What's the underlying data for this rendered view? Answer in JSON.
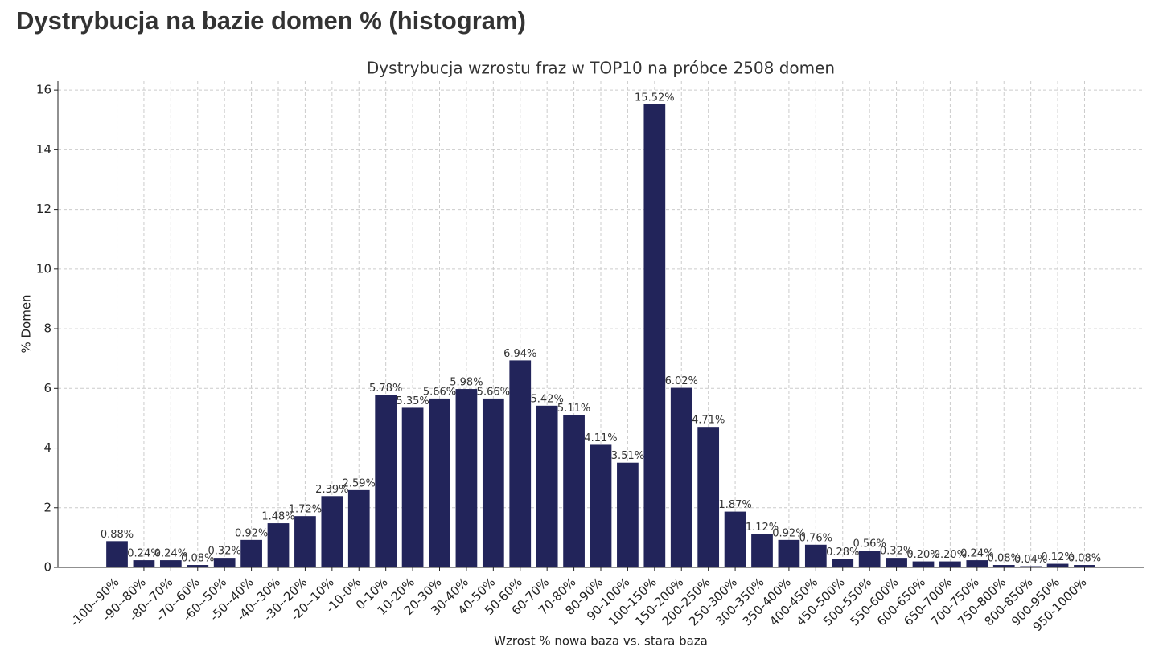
{
  "header": {
    "title": "Dystrybucja na bazie domen % (histogram)"
  },
  "chart_data": {
    "type": "bar",
    "title": "Dystrybucja wzrostu fraz w TOP10 na próbce 2508 domen",
    "x_label": "Wzrost % nowa baza vs. stara baza",
    "y_label": "% Domen",
    "categories": [
      "-100--90%",
      "-90--80%",
      "-80--70%",
      "-70--60%",
      "-60--50%",
      "-50--40%",
      "-40--30%",
      "-30--20%",
      "-20--10%",
      "-10-0%",
      "0-10%",
      "10-20%",
      "20-30%",
      "30-40%",
      "40-50%",
      "50-60%",
      "60-70%",
      "70-80%",
      "80-90%",
      "90-100%",
      "100-150%",
      "150-200%",
      "200-250%",
      "250-300%",
      "300-350%",
      "350-400%",
      "400-450%",
      "450-500%",
      "500-550%",
      "550-600%",
      "600-650%",
      "650-700%",
      "700-750%",
      "750-800%",
      "800-850%",
      "900-950%",
      "950-1000%"
    ],
    "values": [
      0.88,
      0.24,
      0.24,
      0.08,
      0.32,
      0.92,
      1.48,
      1.72,
      2.39,
      2.59,
      5.78,
      5.35,
      5.66,
      5.98,
      5.66,
      6.94,
      5.42,
      5.11,
      4.11,
      3.51,
      15.52,
      6.02,
      4.71,
      1.87,
      1.12,
      0.92,
      0.76,
      0.28,
      0.56,
      0.32,
      0.2,
      0.2,
      0.24,
      0.08,
      0.04,
      0.12,
      0.08
    ],
    "value_labels": [
      "0.88%",
      "0.24%",
      "0.24%",
      "0.08%",
      "0.32%",
      "0.92%",
      "1.48%",
      "1.72%",
      "2.39%",
      "2.59%",
      "5.78%",
      "5.35%",
      "5.66%",
      "5.98%",
      "5.66%",
      "6.94%",
      "5.42%",
      "5.11%",
      "4.11%",
      "3.51%",
      "15.52%",
      "6.02%",
      "4.71%",
      "1.87%",
      "1.12%",
      "0.92%",
      "0.76%",
      "0.28%",
      "0.56%",
      "0.32%",
      "0.20%",
      "0.20%",
      "0.24%",
      "0.08%",
      "0.04%",
      "0.12%",
      "0.08%"
    ],
    "color": "#22245a",
    "ylim": [
      0,
      16.3
    ],
    "yticks": [
      0,
      2,
      4,
      6,
      8,
      10,
      12,
      14,
      16
    ],
    "grid": true
  }
}
